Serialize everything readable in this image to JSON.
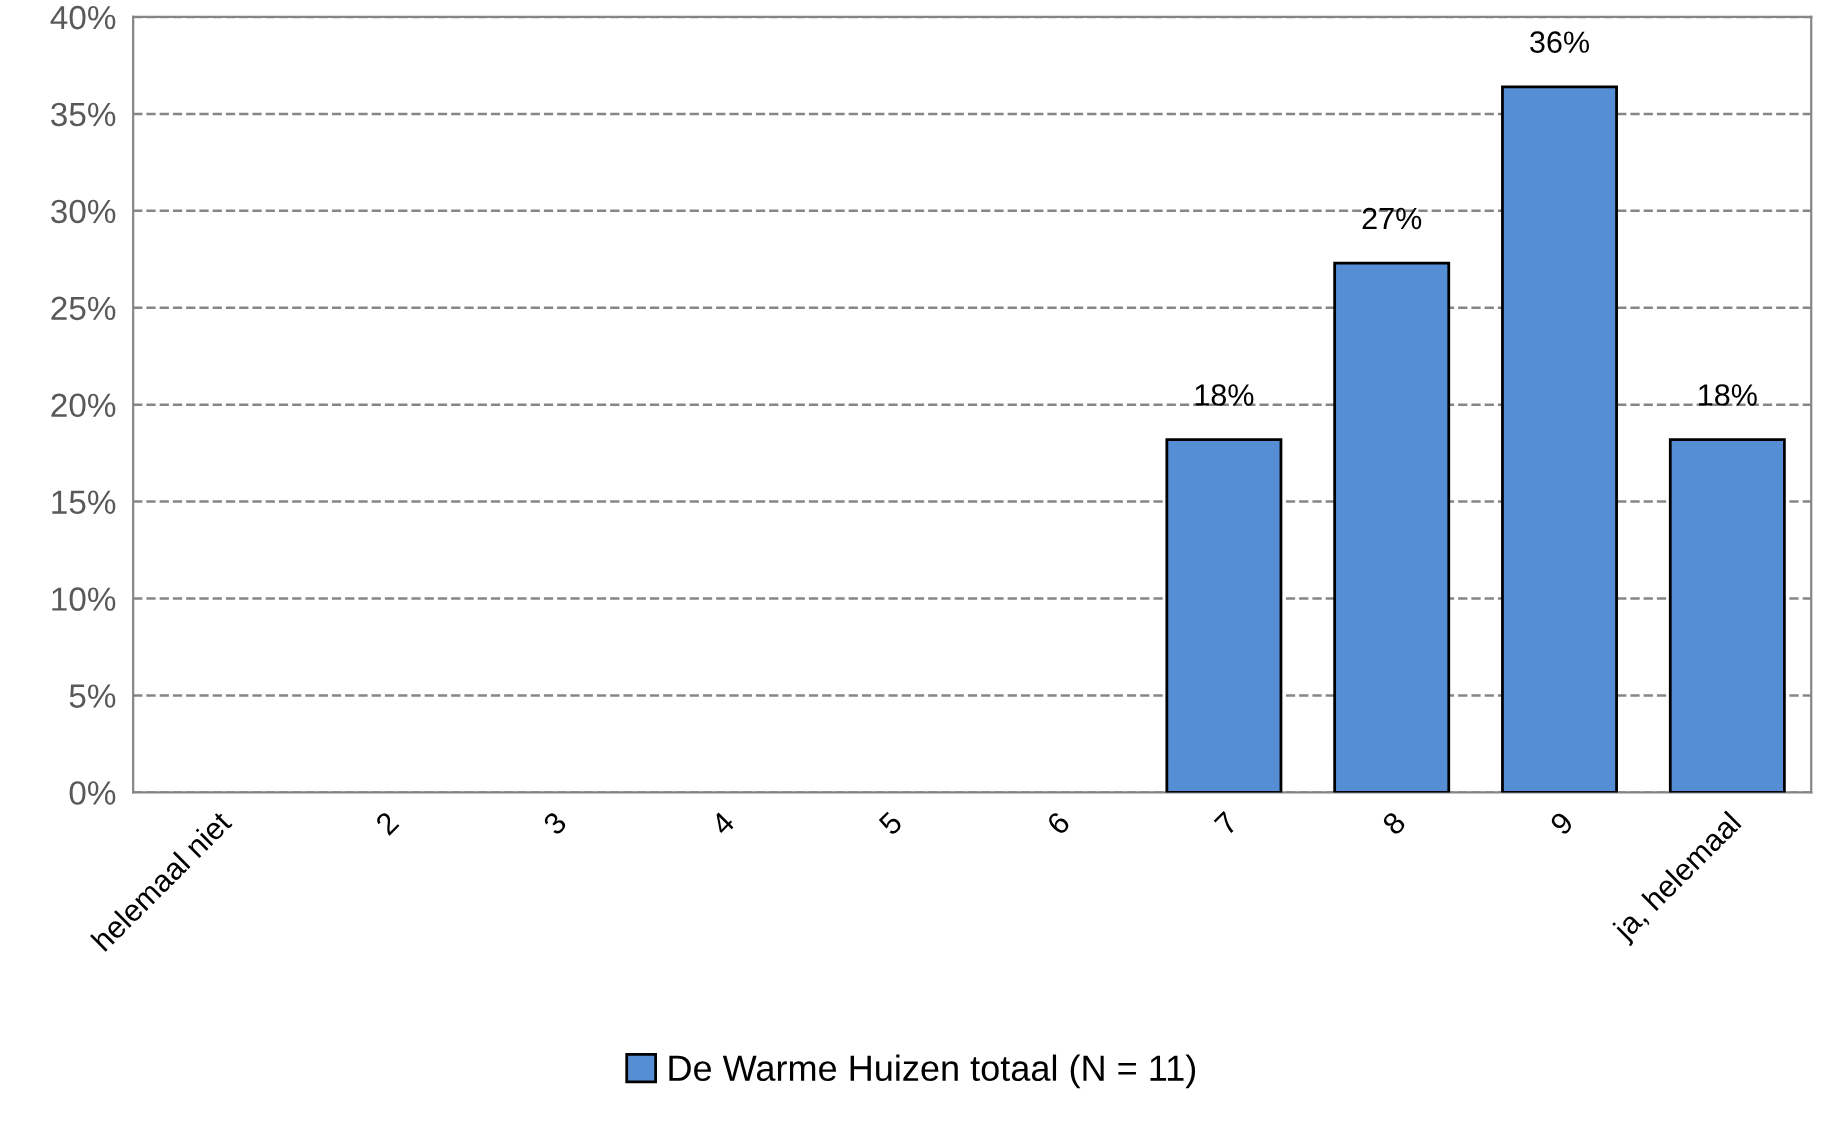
{
  "chart_data": {
    "type": "bar",
    "categories": [
      "helemaal niet",
      "2",
      "3",
      "4",
      "5",
      "6",
      "7",
      "8",
      "9",
      "ja, helemaal"
    ],
    "series": [
      {
        "name": "De Warme Huizen totaal (N = 11)",
        "color": "#558ed5",
        "values": [
          0,
          0,
          0,
          0,
          0,
          0,
          18.2,
          27.3,
          36.4,
          18.2
        ],
        "value_labels": [
          null,
          null,
          null,
          null,
          null,
          null,
          "18%",
          "27%",
          "36%",
          "18%"
        ]
      }
    ],
    "ylim": [
      0,
      40
    ],
    "yticks": [
      {
        "value": 0,
        "label": "0%"
      },
      {
        "value": 5,
        "label": "5%"
      },
      {
        "value": 10,
        "label": "10%"
      },
      {
        "value": 15,
        "label": "15%"
      },
      {
        "value": 20,
        "label": "20%"
      },
      {
        "value": 25,
        "label": "25%"
      },
      {
        "value": 30,
        "label": "30%"
      },
      {
        "value": 35,
        "label": "35%"
      },
      {
        "value": 40,
        "label": "40%"
      }
    ],
    "grid": "y",
    "line_style": "dashed",
    "legend": "bottom"
  }
}
